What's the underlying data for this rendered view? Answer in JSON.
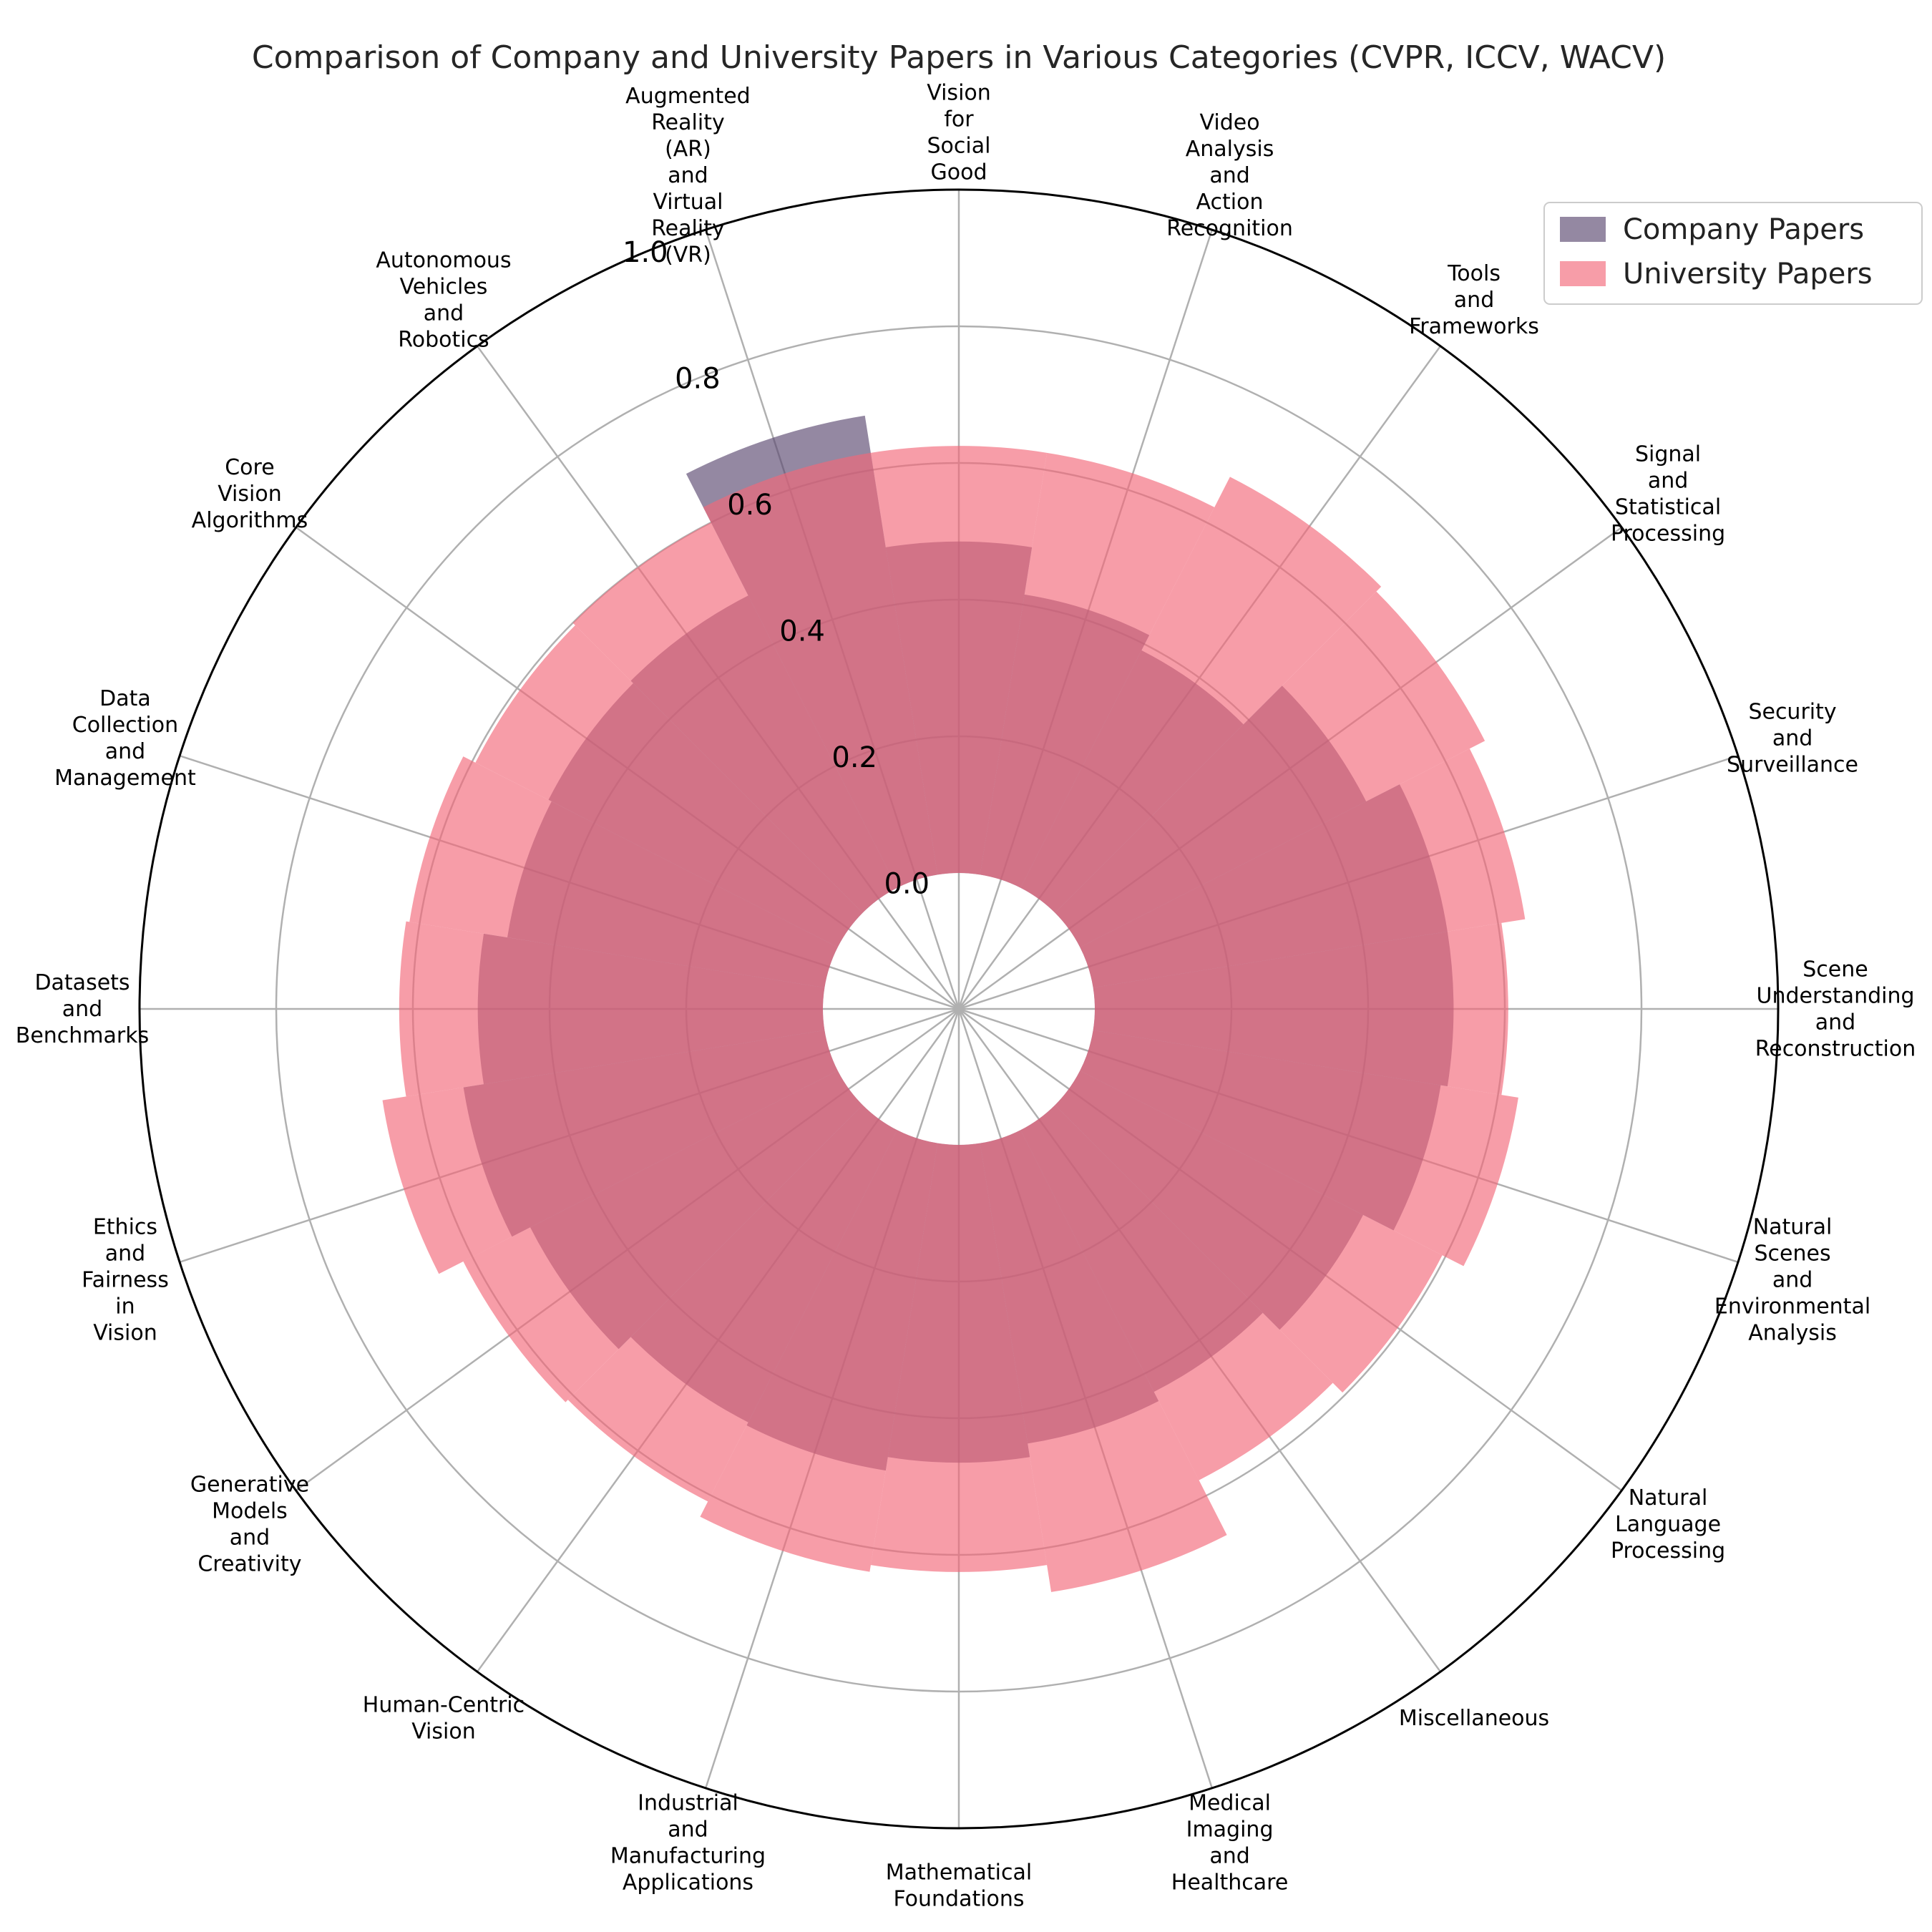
{
  "chart_data": {
    "type": "polar-bar",
    "title": "Comparison of Company and University Papers in Various Categories (CVPR, ICCV, WACV)",
    "categories": [
      "Scene Understanding and Reconstruction",
      "Security and Surveillance",
      "Signal and Statistical Processing",
      "Tools and Frameworks",
      "Video Analysis and Action Recognition",
      "Vision for Social Good",
      "Augmented Reality (AR) and Virtual Reality (VR)",
      "Autonomous Vehicles and Robotics",
      "Core Vision Algorithms",
      "Data Collection and Management",
      "Datasets and Benchmarks",
      "Ethics and Fairness in Vision",
      "Generative Models and Creativity",
      "Human-Centric Vision",
      "Industrial and Manufacturing Applications",
      "Mathematical Foundations",
      "Medical Imaging and Healthcare",
      "Miscellaneous",
      "Natural Language Processing",
      "Natural Scenes and Environmental Analysis"
    ],
    "series": [
      {
        "name": "Company Papers",
        "color": "#5b4870",
        "alpha": 0.65,
        "values": [
          0.525,
          0.525,
          0.47,
          0.39,
          0.415,
          0.485,
          0.68,
          0.48,
          0.475,
          0.47,
          0.505,
          0.535,
          0.505,
          0.48,
          0.485,
          0.465,
          0.445,
          0.43,
          0.465,
          0.515
        ]
      },
      {
        "name": "University Papers",
        "color": "#f3687a",
        "alpha": 0.65,
        "values": [
          0.605,
          0.64,
          0.665,
          0.675,
          0.625,
          0.625,
          0.625,
          0.6,
          0.595,
          0.615,
          0.62,
          0.655,
          0.615,
          0.61,
          0.635,
          0.625,
          0.665,
          0.575,
          0.595,
          0.63
        ]
      }
    ],
    "r_ticks": [
      "0.0",
      "0.2",
      "0.4",
      "0.6",
      "0.8",
      "1.0"
    ],
    "r_range": [
      0,
      1.0
    ],
    "grid": true,
    "legend_position": "top-right"
  }
}
